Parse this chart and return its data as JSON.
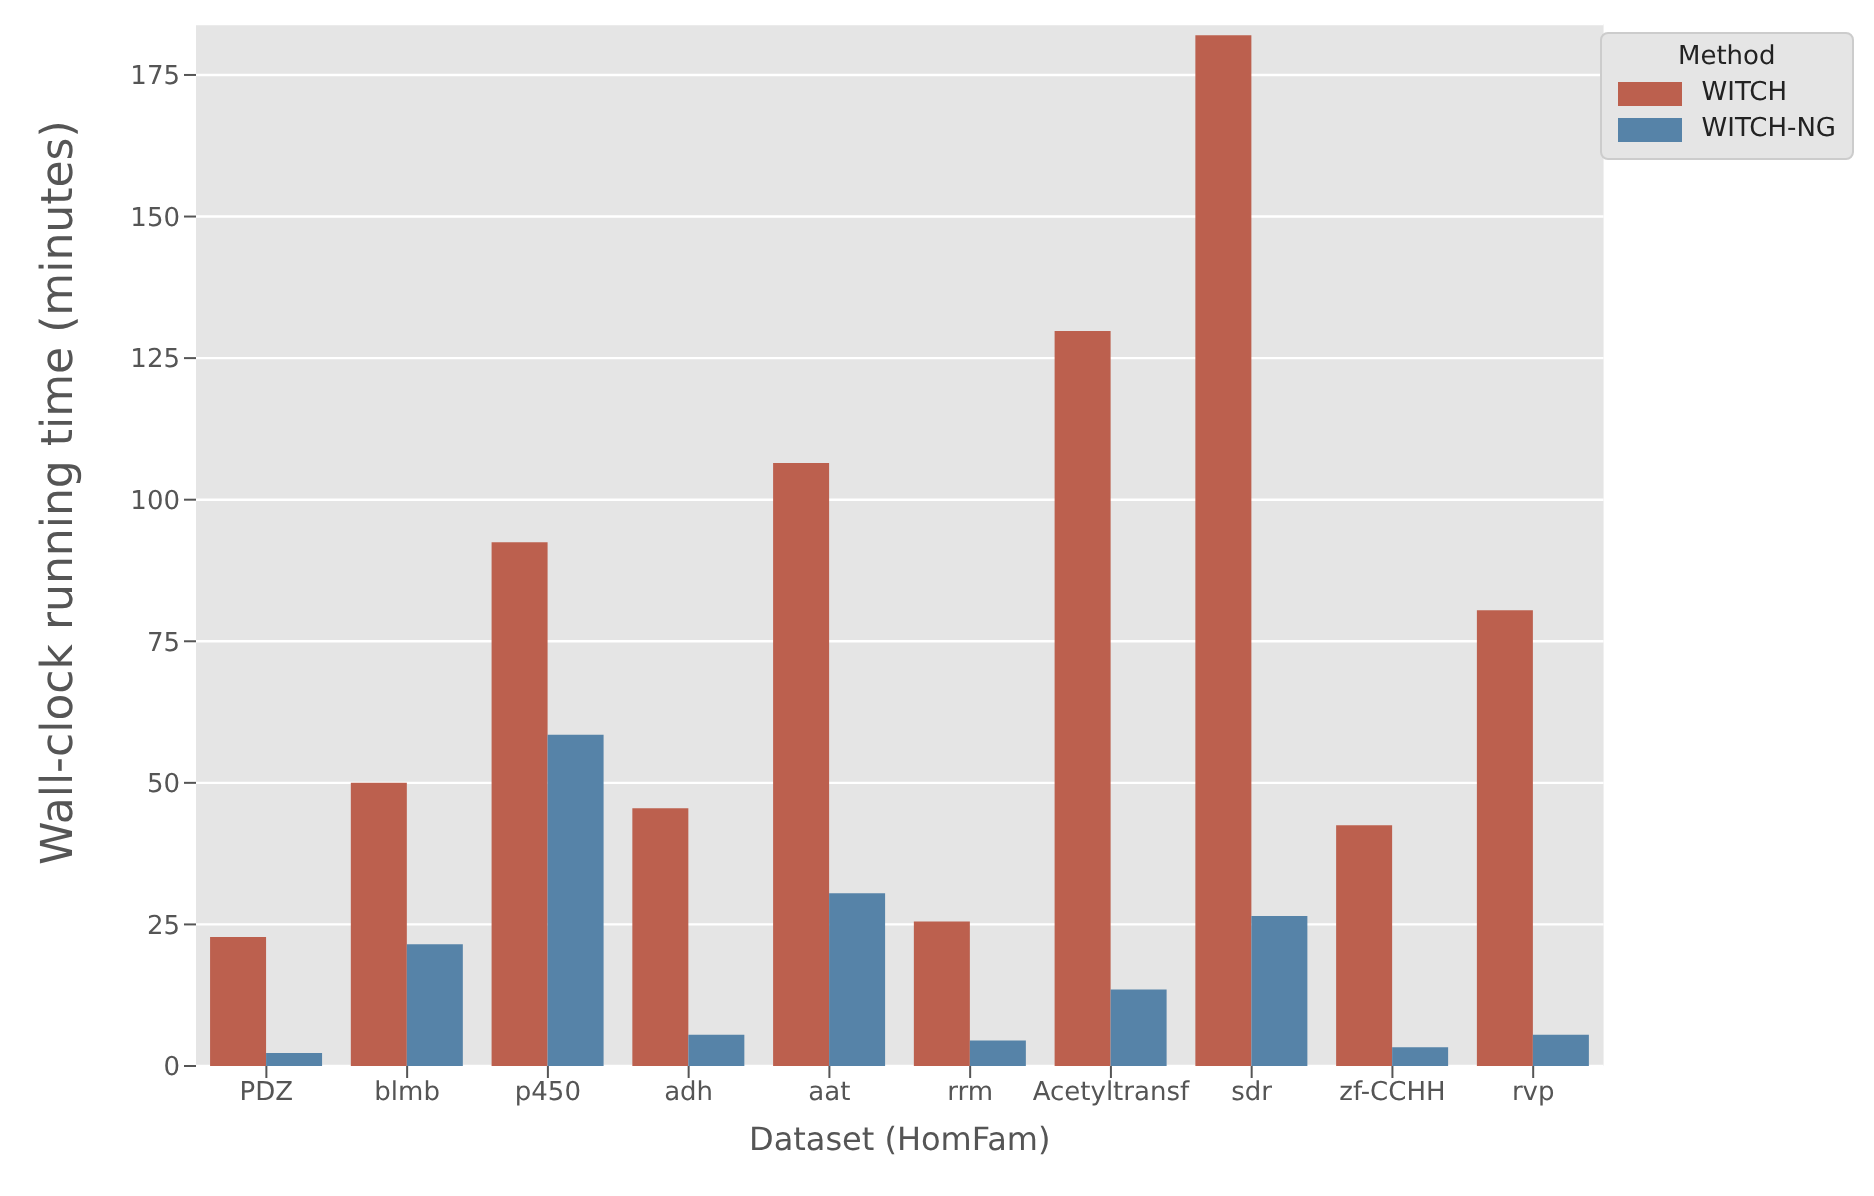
{
  "chart_data": {
    "type": "bar",
    "xlabel": "Dataset (HomFam)",
    "ylabel": "Wall-clock running time (minutes)",
    "legend_title": "Method",
    "categories": [
      "PDZ",
      "blmb",
      "p450",
      "adh",
      "aat",
      "rrm",
      "Acetyltransf",
      "sdr",
      "zf-CCHH",
      "rvp"
    ],
    "series": [
      {
        "name": "WITCH",
        "color": "#bc604e",
        "values": [
          22.8,
          50,
          92.5,
          45.5,
          106.5,
          25.5,
          129.8,
          182,
          42.5,
          80.5
        ]
      },
      {
        "name": "WITCH-NG",
        "color": "#5683a8",
        "values": [
          2.3,
          21.5,
          58.5,
          5.5,
          30.5,
          4.5,
          13.5,
          26.5,
          3.3,
          5.5
        ]
      }
    ],
    "ylim": [
      0,
      184
    ],
    "yticks": [
      0,
      25,
      50,
      75,
      100,
      125,
      150,
      175
    ],
    "grid": "y",
    "legend": "top right"
  }
}
